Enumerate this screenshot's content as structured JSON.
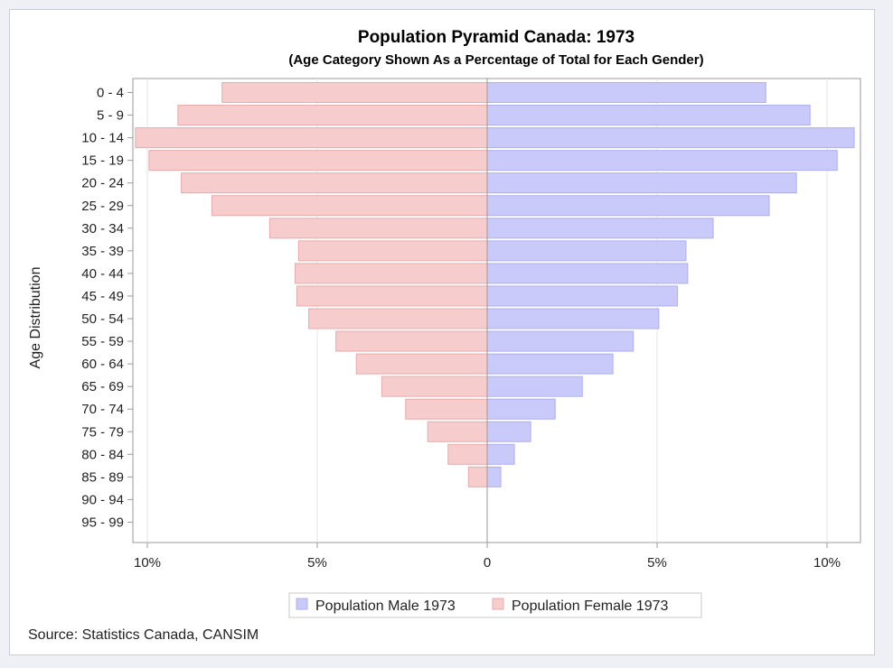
{
  "chart_data": {
    "type": "bar",
    "orientation": "horizontal-diverging",
    "title": "Population Pyramid Canada: 1973",
    "subtitle": "(Age Category Shown As a Percentage of Total for Each Gender)",
    "ylabel": "Age Distribution",
    "xlabel": "",
    "xlim": [
      -10.4,
      11.0
    ],
    "x_ticks": [
      {
        "value": -10,
        "label": "10%"
      },
      {
        "value": -5,
        "label": "5%"
      },
      {
        "value": 0,
        "label": "0"
      },
      {
        "value": 5,
        "label": "5%"
      },
      {
        "value": 10,
        "label": "10%"
      }
    ],
    "categories": [
      "0 - 4",
      "5 - 9",
      "10 - 14",
      "15 - 19",
      "20 - 24",
      "25 - 29",
      "30 - 34",
      "35 - 39",
      "40 - 44",
      "45 - 49",
      "50 - 54",
      "55 - 59",
      "60 - 64",
      "65 - 69",
      "70 - 74",
      "75 - 79",
      "80 - 84",
      "85 - 89",
      "90 - 94",
      "95 - 99"
    ],
    "series": [
      {
        "name": "Population Male 1973",
        "side": "right",
        "color": "#c9c9fa",
        "values": [
          8.2,
          9.5,
          10.8,
          10.3,
          9.1,
          8.3,
          6.65,
          5.85,
          5.9,
          5.6,
          5.05,
          4.3,
          3.7,
          2.8,
          2.0,
          1.28,
          0.8,
          0.4,
          0,
          0
        ]
      },
      {
        "name": "Population Female 1973",
        "side": "left",
        "color": "#f6cccc",
        "values": [
          7.8,
          9.1,
          10.35,
          9.95,
          9.0,
          8.1,
          6.4,
          5.55,
          5.65,
          5.6,
          5.25,
          4.45,
          3.85,
          3.1,
          2.4,
          1.75,
          1.15,
          0.55,
          0,
          0
        ]
      }
    ],
    "legend_position": "bottom-center",
    "grid": "vertical"
  },
  "footnote": "Source: Statistics Canada, CANSIM",
  "colors": {
    "male_fill": "#c9c9fa",
    "male_stroke": "#aeaef2",
    "female_fill": "#f6cccc",
    "female_stroke": "#eaaaaa",
    "axis": "#9a9a9a",
    "grid": "#e6e6e6"
  }
}
